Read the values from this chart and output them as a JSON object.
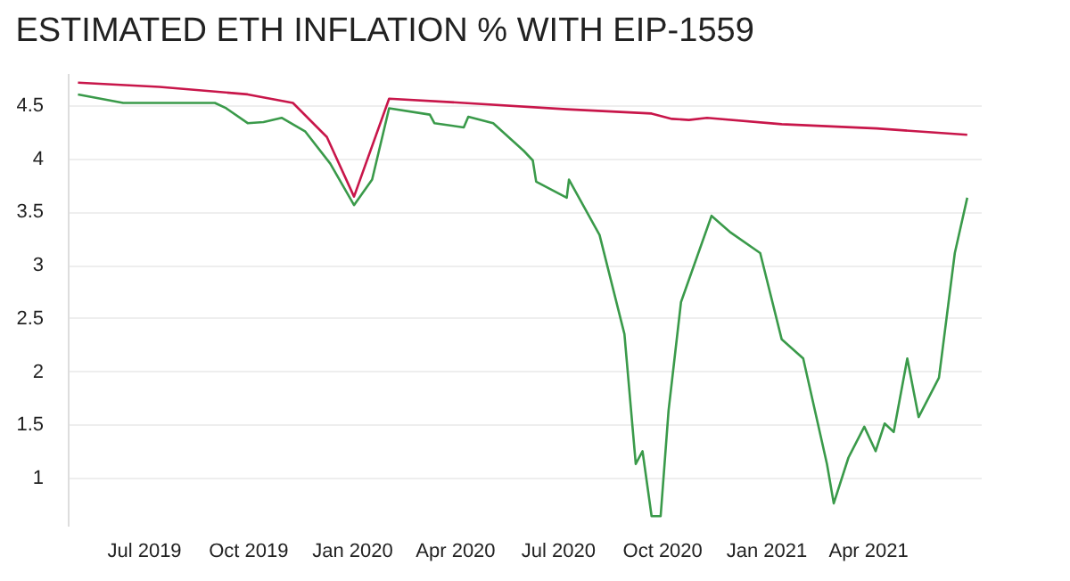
{
  "chart_data": {
    "type": "line",
    "title": "ESTIMATED ETH INFLATION % WITH EIP-1559",
    "ylim": [
      0.55,
      4.8
    ],
    "yticks": [
      1,
      1.5,
      2,
      2.5,
      3,
      3.5,
      4,
      4.5
    ],
    "xlim": [
      "2019-04-25",
      "2021-07-10"
    ],
    "xticks": [
      {
        "value": "2019-07-01",
        "label": "Jul 2019"
      },
      {
        "value": "2019-10-01",
        "label": "Oct 2019"
      },
      {
        "value": "2020-01-01",
        "label": "Jan 2020"
      },
      {
        "value": "2020-04-01",
        "label": "Apr 2020"
      },
      {
        "value": "2020-07-01",
        "label": "Jul 2020"
      },
      {
        "value": "2020-10-01",
        "label": "Oct 2020"
      },
      {
        "value": "2021-01-01",
        "label": "Jan 2021"
      },
      {
        "value": "2021-04-01",
        "label": "Apr 2021"
      }
    ],
    "grid": "y",
    "legend": false,
    "marker": "none",
    "line_style": "solid",
    "series": [
      {
        "color": "#c8164a",
        "x": [
          "2019-05-04",
          "2019-07-15",
          "2019-10-01",
          "2019-11-10",
          "2019-12-10",
          "2020-01-03",
          "2020-02-03",
          "2020-04-09",
          "2020-07-09",
          "2020-09-22",
          "2020-10-10",
          "2020-10-25",
          "2020-11-10",
          "2021-01-15",
          "2021-04-09",
          "2021-06-28"
        ],
        "values": [
          4.71,
          4.67,
          4.6,
          4.52,
          4.2,
          3.64,
          4.56,
          4.52,
          4.46,
          4.42,
          4.37,
          4.36,
          4.38,
          4.32,
          4.28,
          4.22
        ]
      },
      {
        "color": "#3a9a4a",
        "x": [
          "2019-05-04",
          "2019-06-13",
          "2019-07-15",
          "2019-09-02",
          "2019-09-12",
          "2019-10-01",
          "2019-10-15",
          "2019-10-31",
          "2019-11-21",
          "2019-12-13",
          "2020-01-03",
          "2020-01-19",
          "2020-02-03",
          "2020-03-10",
          "2020-03-14",
          "2020-04-09",
          "2020-04-13",
          "2020-05-05",
          "2020-06-01",
          "2020-06-09",
          "2020-06-12",
          "2020-07-09",
          "2020-07-11",
          "2020-08-07",
          "2020-08-29",
          "2020-09-08",
          "2020-09-14",
          "2020-09-22",
          "2020-09-30",
          "2020-10-07",
          "2020-10-18",
          "2020-11-14",
          "2020-11-30",
          "2020-12-27",
          "2021-01-15",
          "2021-02-03",
          "2021-02-24",
          "2021-03-02",
          "2021-03-15",
          "2021-03-29",
          "2021-04-08",
          "2021-04-16",
          "2021-04-24",
          "2021-05-06",
          "2021-05-16",
          "2021-06-03",
          "2021-06-17",
          "2021-06-28"
        ],
        "values": [
          4.6,
          4.52,
          4.52,
          4.52,
          4.47,
          4.33,
          4.34,
          4.38,
          4.25,
          3.95,
          3.56,
          3.8,
          4.47,
          4.41,
          4.33,
          4.29,
          4.39,
          4.33,
          4.07,
          3.98,
          3.78,
          3.63,
          3.8,
          3.28,
          2.35,
          1.13,
          1.25,
          0.64,
          0.64,
          1.63,
          2.65,
          3.46,
          3.31,
          3.11,
          2.3,
          2.12,
          1.13,
          0.76,
          1.19,
          1.48,
          1.25,
          1.51,
          1.43,
          2.12,
          1.57,
          1.94,
          3.11,
          3.63
        ]
      }
    ]
  }
}
